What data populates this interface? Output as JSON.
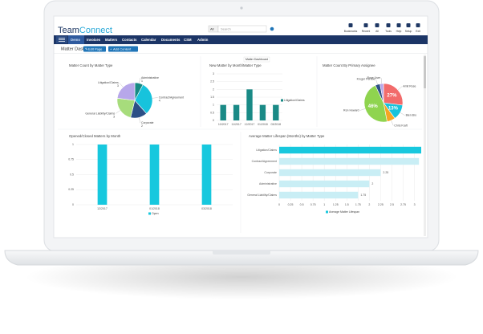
{
  "header": {
    "logo_team": "Team",
    "logo_connect": "Connect",
    "search_scope": "All",
    "search_placeholder": "Search",
    "icons": [
      "Bookmarks",
      "Recent",
      "All",
      "Tools",
      "Help",
      "Setup",
      "Exit"
    ]
  },
  "nav": [
    "Demo",
    "Invoices",
    "Matters",
    "Contacts",
    "Calendar",
    "Documents",
    "CSM",
    "Admin"
  ],
  "page_title": "Matter Dashboard",
  "buttons": [
    "Edit Page",
    "Add Content"
  ],
  "chart_data": [
    {
      "type": "pie",
      "title": "Matter Count by Matter Type",
      "categories": [
        "Administrative",
        "Contract/Agreement",
        "Corporate",
        "General Liability/Claims",
        "Litigation/Claims"
      ],
      "values": [
        1,
        4,
        2,
        3,
        3
      ],
      "colors": [
        "#178a84",
        "#17c3dc",
        "#2c4f86",
        "#a7dc7c",
        "#b7a7ea"
      ]
    },
    {
      "type": "bar",
      "title": "New Matter by Month/Matter Type",
      "tooltip": "Matter Dashboard",
      "categories": [
        "10/2017",
        "11/2017",
        "12/2017",
        "01/2018",
        "03/2018"
      ],
      "series": [
        {
          "name": "Litigation/Claims",
          "color": "#1a8a86",
          "values": [
            1,
            1,
            2,
            1,
            1
          ]
        }
      ],
      "ylim": [
        0,
        3
      ],
      "yticks": [
        0,
        0.5,
        1,
        1.5,
        2,
        2.5,
        3
      ],
      "grid": true
    },
    {
      "type": "pie",
      "title": "Matter Count By Primary Assignee",
      "categories": [
        "Amit Rose",
        "Bien Bro",
        "Chris Kraft",
        "Ron Howard",
        "Kruger Perdue",
        "Rose User"
      ],
      "values": [
        27,
        13,
        7,
        46,
        4,
        3
      ],
      "value_labels": [
        "27%",
        "13%",
        null,
        "46%",
        null,
        null
      ],
      "colors": [
        "#f26b6b",
        "#17c3dc",
        "#f5a623",
        "#8fd44f",
        "#2c4f86",
        "#b7a7ea"
      ]
    },
    {
      "type": "bar",
      "title": "Opened/Closed Matters by Month",
      "categories": [
        "12/2017",
        "01/2018",
        "03/2018"
      ],
      "series": [
        {
          "name": "Open",
          "color": "#17c8de",
          "values": [
            1,
            1,
            1
          ]
        }
      ],
      "ylim": [
        0,
        1
      ],
      "yticks": [
        0,
        0.25,
        0.5,
        0.75,
        1
      ],
      "grid": true
    },
    {
      "type": "hbar",
      "title": "Average Matter Lifespan (Months) by Matter Type",
      "categories": [
        "Litigation/Claims",
        "Contract/Agreement",
        "Corporate",
        "Administrative",
        "General Liability/Claims"
      ],
      "series": [
        {
          "name": "Average Matter Lifespan",
          "color": "#17c8de",
          "values": [
            3.15,
            3.1,
            2.25,
            2,
            1.75
          ]
        }
      ],
      "bar_colors": [
        "#17c8de",
        "#c9eef5",
        "#c9eef5",
        "#c9eef5",
        "#c9eef5"
      ],
      "value_labels": [
        null,
        null,
        "2.25",
        "2",
        "1.75"
      ],
      "xlim": [
        0,
        3.15
      ],
      "xticks": [
        0,
        0.25,
        0.5,
        0.75,
        1,
        1.25,
        1.5,
        1.75,
        2,
        2.25,
        2.5,
        2.75,
        3
      ],
      "grid": true
    }
  ]
}
